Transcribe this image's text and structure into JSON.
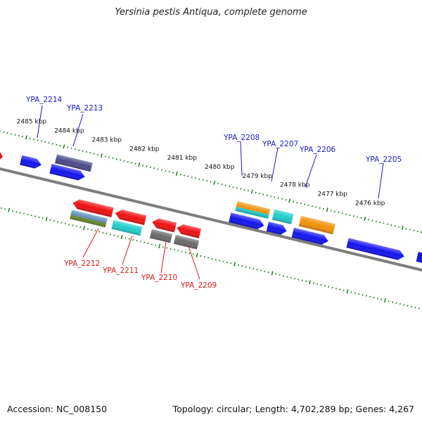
{
  "title": "Yersinia pestis Antiqua, complete genome",
  "footer": {
    "accession": "Accession: NC_008150",
    "topology": "Topology: circular; Length: 4,702,289 bp; Genes: 4,267"
  },
  "colors": {
    "backbone": "#808080",
    "tick": "#1f7a1f",
    "forward_label": "#1a1acc",
    "reverse_label": "#d81a1a",
    "blue": "#1414ee",
    "dark_slate": "#4a4a8a",
    "orange": "#f0900a",
    "cyan": "#22cccc",
    "red": "#ee1111",
    "gray": "#6a6a6a",
    "steelblue": "#5a8ab8",
    "olive": "#6a8a2a"
  },
  "kbp_labels": [
    "2485 kbp",
    "2484 kbp",
    "2483 kbp",
    "2482 kbp",
    "2481 kbp",
    "2480 kbp",
    "2479 kbp",
    "2478 kbp",
    "2477 kbp",
    "2476 kbp"
  ],
  "gene_labels": {
    "forward": [
      "YPA_2214",
      "YPA_2213",
      "YPA_2208",
      "YPA_2207",
      "YPA_2206",
      "YPA_2205"
    ],
    "reverse": [
      "YPA_2212",
      "YPA_2211",
      "YPA_2210",
      "YPA_2209"
    ]
  }
}
